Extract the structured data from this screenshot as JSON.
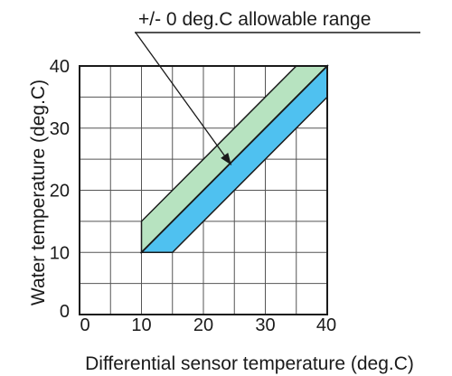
{
  "chart_data": {
    "type": "area",
    "xlabel": "Differential sensor temperature (deg.C)",
    "ylabel": "Water temperature (deg.C)",
    "xlim": [
      0,
      40
    ],
    "ylim": [
      0,
      40
    ],
    "x_ticks": [
      "0",
      "10",
      "20",
      "30",
      "40"
    ],
    "y_ticks": [
      "0",
      "10",
      "20",
      "30",
      "40"
    ],
    "grid": true,
    "grid_step": 5,
    "annotation": {
      "text": "+/- 0 deg.C allowable range",
      "points_to": {
        "x": 24.5,
        "y": 20
      }
    },
    "series": [
      {
        "line": "center",
        "x": [
          10,
          40
        ],
        "y": [
          10,
          40
        ]
      },
      {
        "band": "upper",
        "color": "#b7e3c0",
        "polygon": [
          [
            10,
            10
          ],
          [
            10,
            15
          ],
          [
            35,
            40
          ],
          [
            40,
            40
          ]
        ]
      },
      {
        "band": "lower",
        "color": "#4fc1f0",
        "polygon": [
          [
            10,
            10
          ],
          [
            15,
            10
          ],
          [
            40,
            35
          ],
          [
            40,
            40
          ]
        ]
      }
    ]
  }
}
